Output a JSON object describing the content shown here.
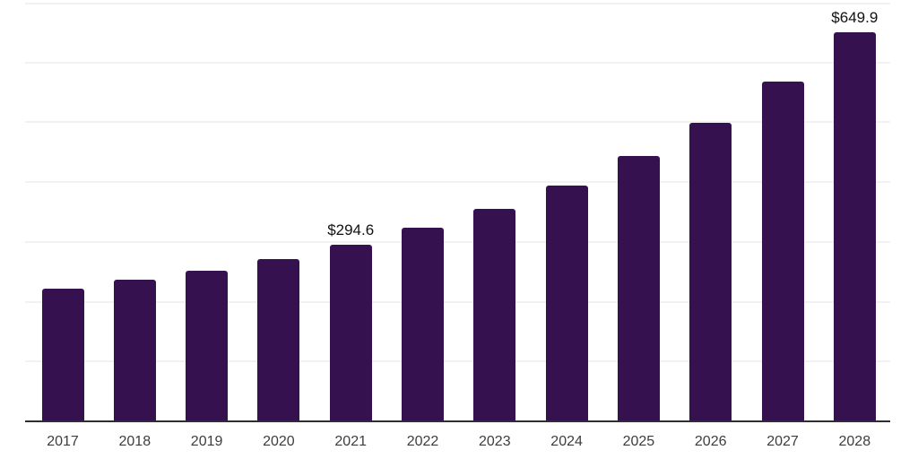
{
  "chart_data": {
    "type": "bar",
    "title": "",
    "xlabel": "",
    "ylabel": "",
    "categories": [
      "2017",
      "2018",
      "2019",
      "2020",
      "2021",
      "2022",
      "2023",
      "2024",
      "2025",
      "2026",
      "2027",
      "2028"
    ],
    "values": [
      222.5,
      236.4,
      251.4,
      271.5,
      294.6,
      324.0,
      355.5,
      394.0,
      443.0,
      499.0,
      568.0,
      649.9
    ],
    "data_labels": [
      null,
      null,
      null,
      null,
      "$294.6",
      null,
      null,
      null,
      null,
      null,
      null,
      "$649.9"
    ],
    "ylim": [
      0,
      700
    ],
    "gridline_interval": 100,
    "grid": true,
    "legend": false,
    "y_tick_labels_visible": false,
    "colors": {
      "bar": "#361150",
      "axis_line": "#2e2e2e",
      "gridline": "#f2f2f2",
      "tick_label": "#3d3d3d",
      "data_label": "#111111",
      "background": "#ffffff"
    }
  }
}
